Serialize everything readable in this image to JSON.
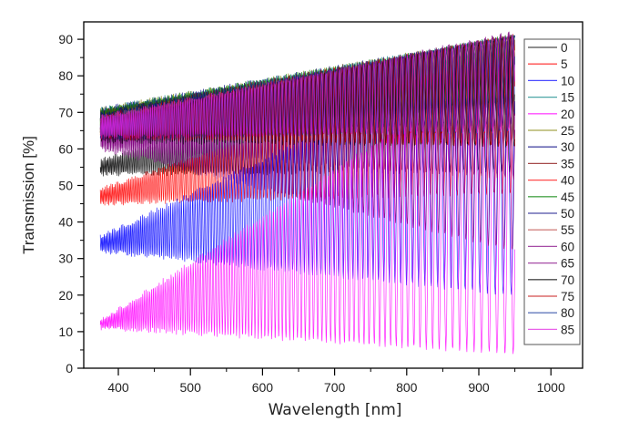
{
  "chart_data": {
    "type": "line",
    "title": "",
    "xlabel": "Wavelength [nm]",
    "ylabel": "Transmission [%]",
    "xlim": [
      350,
      1045
    ],
    "ylim": [
      0,
      95
    ],
    "xticks": [
      "400",
      "500",
      "600",
      "700",
      "800",
      "900",
      "1000"
    ],
    "xtick_values": [
      400,
      500,
      600,
      700,
      800,
      900,
      1000
    ],
    "yticks": [
      "0",
      "10",
      "20",
      "30",
      "40",
      "50",
      "60",
      "70",
      "80",
      "90"
    ],
    "ytick_values": [
      0,
      10,
      20,
      30,
      40,
      50,
      60,
      70,
      80,
      90
    ],
    "grid": false,
    "legend_position": "right",
    "x_range_data": [
      375,
      950
    ],
    "series": [
      {
        "name": "0",
        "color": "#000000",
        "start_center": 55,
        "end_center": 72,
        "start_amp": 2,
        "end_amp": 18
      },
      {
        "name": "5",
        "color": "#ff0000",
        "start_center": 47,
        "end_center": 68,
        "start_amp": 2,
        "end_amp": 20
      },
      {
        "name": "10",
        "color": "#0000ff",
        "start_center": 34,
        "end_center": 55,
        "start_amp": 2,
        "end_amp": 35
      },
      {
        "name": "15",
        "color": "#008080",
        "start_center": 68,
        "end_center": 82,
        "start_amp": 3,
        "end_amp": 9
      },
      {
        "name": "20",
        "color": "#ff00ff",
        "start_center": 12,
        "end_center": 45,
        "start_amp": 1,
        "end_amp": 41
      },
      {
        "name": "25",
        "color": "#808000",
        "start_center": 68,
        "end_center": 82,
        "start_amp": 3,
        "end_amp": 9
      },
      {
        "name": "30",
        "color": "#000080",
        "start_center": 68,
        "end_center": 80,
        "start_amp": 3,
        "end_amp": 11
      },
      {
        "name": "35",
        "color": "#800000",
        "start_center": 67,
        "end_center": 78,
        "start_amp": 3,
        "end_amp": 13
      },
      {
        "name": "40",
        "color": "#ff0000",
        "start_center": 67,
        "end_center": 78,
        "start_amp": 3,
        "end_amp": 13
      },
      {
        "name": "45",
        "color": "#008000",
        "start_center": 68,
        "end_center": 81,
        "start_amp": 3,
        "end_amp": 10
      },
      {
        "name": "50",
        "color": "#000080",
        "start_center": 67,
        "end_center": 79,
        "start_amp": 3,
        "end_amp": 12
      },
      {
        "name": "55",
        "color": "#c0504d",
        "start_center": 66,
        "end_center": 77,
        "start_amp": 3,
        "end_amp": 14
      },
      {
        "name": "60",
        "color": "#800080",
        "start_center": 64,
        "end_center": 62,
        "start_amp": 4,
        "end_amp": 30
      },
      {
        "name": "65",
        "color": "#800080",
        "start_center": 64,
        "end_center": 72,
        "start_amp": 4,
        "end_amp": 20
      },
      {
        "name": "70",
        "color": "#000000",
        "start_center": 65,
        "end_center": 76,
        "start_amp": 3,
        "end_amp": 15
      },
      {
        "name": "75",
        "color": "#c00000",
        "start_center": 66,
        "end_center": 76,
        "start_amp": 3,
        "end_amp": 15
      },
      {
        "name": "80",
        "color": "#1f3f9f",
        "start_center": 66,
        "end_center": 78,
        "start_amp": 3,
        "end_amp": 13
      },
      {
        "name": "85",
        "color": "#e020e0",
        "start_center": 66,
        "end_center": 78,
        "start_amp": 3,
        "end_amp": 13
      }
    ]
  }
}
